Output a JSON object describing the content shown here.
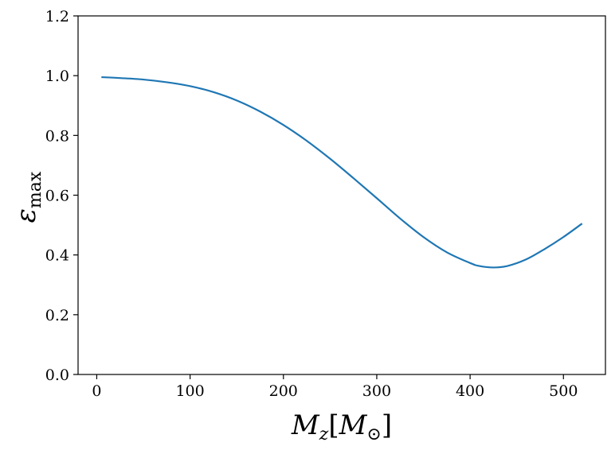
{
  "chart_data": {
    "type": "line",
    "title": "",
    "xlabel": "M_z[M_⊙]",
    "ylabel": "ε_max",
    "xlabel_main": "M",
    "xlabel_sub": "z",
    "xlabel_bracket_open": "[",
    "xlabel_unit": "M",
    "xlabel_unit_sub": "⊙",
    "xlabel_bracket_close": "]",
    "ylabel_main": "ε",
    "ylabel_sub": "max",
    "xlim": [
      -20,
      545
    ],
    "ylim": [
      0.0,
      1.2
    ],
    "xticks": [
      0,
      100,
      200,
      300,
      400,
      500
    ],
    "yticks": [
      0.0,
      0.2,
      0.4,
      0.6,
      0.8,
      1.0,
      1.2
    ],
    "xtick_labels": [
      "0",
      "100",
      "200",
      "300",
      "400",
      "500"
    ],
    "ytick_labels": [
      "0.0",
      "0.2",
      "0.4",
      "0.6",
      "0.8",
      "1.0",
      "1.2"
    ],
    "grid": false,
    "series": [
      {
        "color": "#1f77b4",
        "x": [
          5,
          25,
          50,
          75,
          100,
          125,
          150,
          175,
          200,
          225,
          250,
          275,
          300,
          325,
          350,
          375,
          400,
          410,
          425,
          440,
          460,
          480,
          500,
          520
        ],
        "y": [
          0.995,
          0.992,
          0.987,
          0.978,
          0.965,
          0.945,
          0.917,
          0.88,
          0.835,
          0.782,
          0.722,
          0.657,
          0.59,
          0.522,
          0.46,
          0.409,
          0.373,
          0.363,
          0.358,
          0.363,
          0.385,
          0.42,
          0.46,
          0.505
        ]
      }
    ]
  }
}
